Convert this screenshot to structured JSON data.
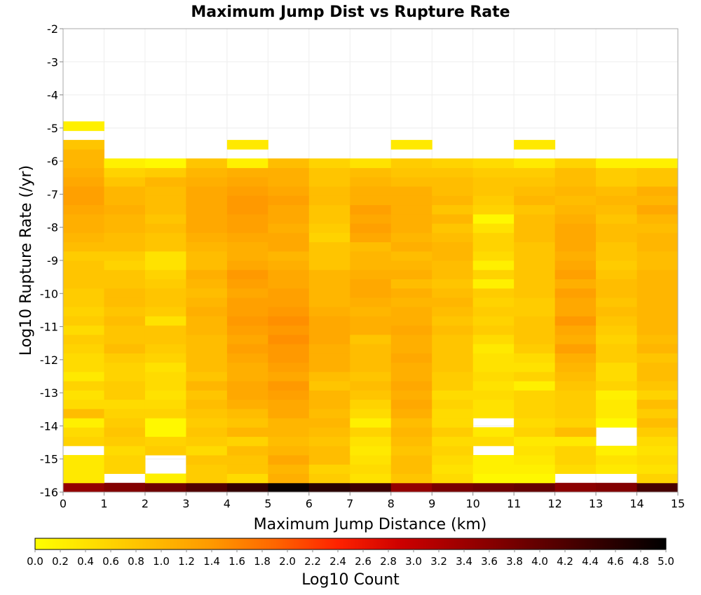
{
  "chart_data": {
    "type": "heatmap",
    "title": "Maximum Jump Dist vs Rupture Rate",
    "xlabel": "Maximum Jump Distance (km)",
    "ylabel": "Log10 Rupture Rate (/yr)",
    "colorbar_label": "Log10 Count",
    "xlim": [
      0,
      15
    ],
    "ylim": [
      -16,
      -2
    ],
    "x_ticks": [
      "0",
      "1",
      "2",
      "3",
      "4",
      "5",
      "6",
      "7",
      "8",
      "9",
      "10",
      "11",
      "12",
      "13",
      "14",
      "15"
    ],
    "y_ticks": [
      "-2",
      "-3",
      "-4",
      "-5",
      "-6",
      "-7",
      "-8",
      "-9",
      "-10",
      "-11",
      "-12",
      "-13",
      "-14",
      "-15",
      "-16"
    ],
    "colorbar_range": [
      0.0,
      5.0
    ],
    "colorbar_ticks": [
      "0.0",
      "0.2",
      "0.4",
      "0.6",
      "0.8",
      "1.0",
      "1.2",
      "1.4",
      "1.6",
      "1.8",
      "2.0",
      "2.2",
      "2.4",
      "2.6",
      "2.8",
      "3.0",
      "3.2",
      "3.4",
      "3.6",
      "3.8",
      "4.0",
      "4.2",
      "4.4",
      "4.6",
      "4.8",
      "5.0"
    ],
    "colormap": [
      "#ffff00",
      "#ff9900",
      "#ff3300",
      "#cc0000",
      "#660000",
      "#000000"
    ],
    "grid": true,
    "x_bin_width": 1,
    "y_bin_height": 0.28,
    "y_bin_start": -16,
    "values": [
      [
        3.5,
        3.7,
        3.9,
        4.2,
        4.5,
        4.9,
        4.6,
        4.4,
        3.5,
        3.8,
        3.9,
        4.0,
        3.6,
        3.7,
        4.3
      ],
      [
        0.3,
        null,
        0.2,
        0.7,
        0.5,
        1.1,
        0.7,
        0.4,
        0.8,
        0.5,
        0.1,
        0.1,
        null,
        null,
        0.6
      ],
      [
        0.3,
        0.6,
        null,
        0.7,
        0.8,
        1.0,
        0.6,
        0.5,
        0.9,
        0.4,
        0.2,
        0.2,
        0.5,
        0.3,
        0.4
      ],
      [
        0.3,
        0.6,
        null,
        0.8,
        0.8,
        1.2,
        0.9,
        0.4,
        0.9,
        0.5,
        0.2,
        0.3,
        0.6,
        0.4,
        0.5
      ],
      [
        null,
        0.5,
        0.7,
        0.5,
        0.9,
        1.0,
        0.9,
        0.3,
        0.8,
        0.6,
        null,
        0.4,
        0.6,
        0.2,
        0.4
      ],
      [
        0.6,
        0.7,
        0.6,
        0.7,
        0.6,
        0.9,
        0.8,
        0.4,
        0.9,
        0.5,
        0.5,
        0.3,
        0.3,
        null,
        0.5
      ],
      [
        0.5,
        0.8,
        0.1,
        0.8,
        1.0,
        1.0,
        0.9,
        0.6,
        1.0,
        0.7,
        0.3,
        0.6,
        0.9,
        null,
        0.7
      ],
      [
        0.2,
        0.7,
        0.1,
        0.7,
        0.8,
        1.0,
        1.0,
        0.2,
        0.9,
        0.5,
        null,
        0.5,
        0.6,
        0.1,
        0.9
      ],
      [
        0.9,
        0.6,
        0.6,
        0.8,
        0.9,
        1.2,
        0.9,
        0.5,
        1.1,
        0.5,
        0.4,
        0.6,
        0.7,
        0.3,
        0.7
      ],
      [
        0.5,
        0.5,
        0.5,
        0.9,
        1.1,
        1.2,
        1.0,
        0.6,
        1.2,
        0.6,
        0.4,
        0.6,
        0.7,
        0.3,
        0.9
      ],
      [
        0.4,
        0.7,
        0.4,
        0.8,
        1.2,
        1.3,
        1.0,
        0.8,
        1.1,
        0.5,
        0.5,
        0.6,
        0.7,
        0.2,
        0.6
      ],
      [
        0.6,
        0.7,
        0.5,
        1.0,
        1.2,
        1.4,
        0.8,
        0.9,
        1.2,
        0.7,
        0.4,
        0.2,
        0.8,
        0.6,
        0.8
      ],
      [
        0.3,
        0.6,
        0.5,
        0.8,
        1.1,
        1.2,
        0.9,
        0.8,
        1.1,
        0.7,
        0.5,
        0.6,
        0.9,
        0.5,
        0.9
      ],
      [
        0.5,
        0.6,
        0.4,
        0.9,
        1.1,
        1.3,
        1.1,
        0.9,
        1.1,
        0.8,
        0.4,
        0.4,
        1.0,
        0.5,
        0.9
      ],
      [
        0.5,
        0.7,
        0.6,
        0.9,
        1.2,
        1.4,
        1.1,
        0.9,
        1.2,
        0.8,
        0.4,
        0.5,
        1.1,
        0.7,
        0.8
      ],
      [
        0.6,
        0.9,
        0.7,
        0.9,
        1.3,
        1.4,
        1.1,
        0.9,
        1.1,
        0.8,
        0.3,
        0.7,
        1.3,
        0.7,
        1.0
      ],
      [
        0.7,
        0.8,
        0.8,
        0.9,
        1.2,
        1.5,
        1.2,
        0.8,
        1.1,
        0.8,
        0.5,
        0.8,
        1.1,
        0.6,
        0.9
      ],
      [
        0.5,
        0.8,
        0.8,
        1.0,
        1.3,
        1.4,
        1.2,
        1.1,
        1.2,
        0.9,
        0.7,
        0.8,
        1.2,
        0.7,
        1.0
      ],
      [
        0.7,
        0.9,
        0.4,
        1.0,
        1.4,
        1.5,
        1.2,
        1.1,
        1.1,
        0.8,
        0.6,
        0.8,
        1.4,
        0.8,
        1.0
      ],
      [
        0.6,
        0.8,
        0.7,
        1.1,
        1.3,
        1.4,
        1.1,
        1.0,
        1.1,
        0.9,
        0.7,
        0.7,
        1.2,
        0.9,
        1.0
      ],
      [
        0.7,
        0.9,
        0.8,
        1.0,
        1.3,
        1.3,
        1.0,
        1.1,
        1.0,
        1.0,
        0.6,
        0.7,
        1.2,
        0.8,
        1.0
      ],
      [
        0.7,
        0.9,
        0.8,
        0.9,
        1.2,
        1.3,
        1.0,
        1.2,
        1.1,
        0.9,
        0.7,
        0.8,
        1.3,
        0.9,
        1.0
      ],
      [
        0.8,
        0.8,
        0.7,
        1.0,
        1.3,
        1.2,
        1.0,
        1.2,
        0.9,
        0.8,
        0.2,
        0.8,
        1.1,
        0.9,
        1.0
      ],
      [
        0.8,
        0.8,
        0.6,
        1.1,
        1.4,
        1.2,
        1.0,
        1.1,
        1.1,
        0.9,
        0.6,
        0.8,
        1.3,
        0.8,
        1.0
      ],
      [
        0.8,
        0.6,
        0.4,
        0.9,
        1.2,
        1.1,
        0.8,
        1.0,
        1.0,
        0.9,
        0.2,
        0.8,
        1.2,
        0.7,
        0.9
      ],
      [
        0.7,
        0.7,
        0.4,
        0.9,
        1.1,
        1.0,
        0.8,
        1.0,
        0.9,
        1.0,
        0.5,
        0.8,
        1.1,
        0.8,
        0.9
      ],
      [
        0.9,
        0.9,
        0.8,
        1.0,
        1.1,
        1.2,
        0.8,
        0.9,
        1.1,
        1.0,
        0.6,
        0.8,
        1.2,
        0.8,
        1.0
      ],
      [
        1.0,
        0.9,
        0.8,
        1.1,
        1.2,
        1.2,
        0.6,
        1.2,
        1.0,
        0.9,
        0.6,
        0.9,
        1.2,
        0.9,
        1.0
      ],
      [
        1.1,
        1.0,
        0.9,
        1.2,
        1.3,
        1.1,
        0.7,
        1.3,
        1.1,
        0.8,
        0.4,
        0.9,
        1.2,
        0.9,
        0.9
      ],
      [
        1.1,
        1.0,
        0.8,
        1.2,
        1.3,
        1.2,
        0.8,
        1.2,
        1.1,
        1.0,
        0.1,
        0.9,
        1.1,
        0.8,
        1.0
      ],
      [
        1.2,
        1.1,
        0.9,
        1.2,
        1.4,
        1.2,
        0.8,
        1.3,
        1.1,
        0.8,
        0.6,
        0.8,
        1.0,
        0.9,
        1.2
      ],
      [
        1.3,
        1.0,
        0.9,
        1.2,
        1.4,
        1.3,
        0.9,
        1.1,
        1.1,
        1.0,
        0.7,
        1.0,
        0.9,
        1.0,
        1.0
      ],
      [
        1.3,
        1.0,
        0.9,
        1.2,
        1.3,
        1.2,
        0.9,
        1.1,
        1.1,
        0.9,
        0.8,
        0.9,
        1.0,
        0.9,
        1.1
      ],
      [
        1.2,
        0.8,
        1.0,
        1.1,
        1.2,
        1.1,
        0.8,
        1.0,
        0.9,
        0.9,
        0.8,
        0.8,
        0.9,
        0.7,
        0.8
      ],
      [
        1.1,
        0.6,
        0.7,
        1.0,
        1.1,
        1.1,
        0.8,
        0.9,
        0.8,
        0.8,
        0.7,
        0.7,
        0.9,
        0.7,
        0.8
      ],
      [
        1.0,
        0.2,
        0.1,
        0.8,
        0.2,
        0.9,
        0.6,
        0.4,
        0.7,
        0.6,
        0.5,
        0.3,
        0.6,
        0.2,
        0.2
      ],
      [
        1.0,
        null,
        null,
        null,
        null,
        null,
        null,
        null,
        null,
        null,
        null,
        null,
        null,
        null,
        null
      ],
      [
        0.8,
        null,
        null,
        null,
        0.3,
        null,
        null,
        null,
        0.3,
        null,
        null,
        0.3,
        null,
        null,
        null
      ],
      [
        null,
        null,
        null,
        null,
        null,
        null,
        null,
        null,
        null,
        null,
        null,
        null,
        null,
        null,
        null
      ],
      [
        0.2,
        null,
        null,
        null,
        null,
        null,
        null,
        null,
        null,
        null,
        null,
        null,
        null,
        null,
        null
      ]
    ]
  }
}
